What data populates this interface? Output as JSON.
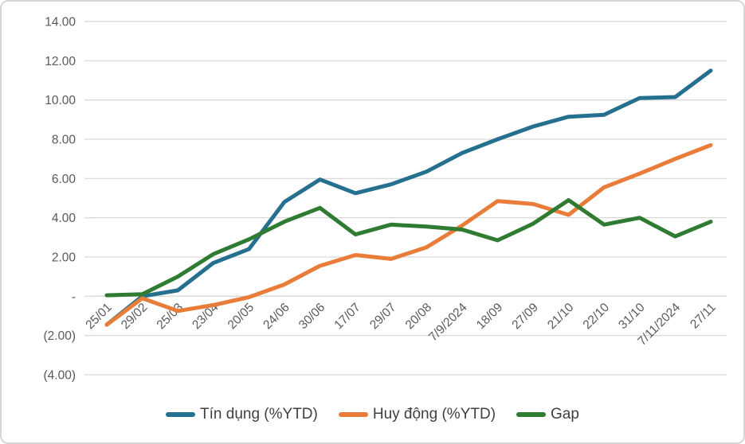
{
  "chart_data": {
    "type": "line",
    "title": "",
    "xlabel": "",
    "ylabel": "",
    "categories": [
      "25/01",
      "29/02",
      "25/03",
      "23/04",
      "20/05",
      "24/06",
      "30/06",
      "17/07",
      "29/07",
      "20/08",
      "7/9/2024",
      "18/09",
      "27/09",
      "21/10",
      "22/10",
      "31/10",
      "7/11/2024",
      "27/11"
    ],
    "series": [
      {
        "name": "Tín dụng (%YTD)",
        "color": "#26708F",
        "values": [
          -1.45,
          0.0,
          0.3,
          1.7,
          2.4,
          4.8,
          5.95,
          5.25,
          5.7,
          6.35,
          7.3,
          8.0,
          8.65,
          9.15,
          9.25,
          10.1,
          10.15,
          11.5
        ]
      },
      {
        "name": "Huy động (%YTD)",
        "color": "#E97C38",
        "values": [
          -1.45,
          -0.1,
          -0.75,
          -0.45,
          -0.05,
          0.6,
          1.55,
          2.1,
          1.9,
          2.5,
          3.6,
          4.85,
          4.7,
          4.15,
          5.55,
          6.25,
          7.0,
          7.7
        ]
      },
      {
        "name": "Gap",
        "color": "#2E7B31",
        "values": [
          0.05,
          0.1,
          1.0,
          2.15,
          2.9,
          3.8,
          4.5,
          3.15,
          3.65,
          3.55,
          3.4,
          2.85,
          3.7,
          4.9,
          3.65,
          4.0,
          3.05,
          3.8
        ]
      }
    ],
    "ylim": [
      -4,
      14
    ],
    "yticks": [
      -4,
      -2,
      0,
      2,
      4,
      6,
      8,
      10,
      12,
      14
    ],
    "ytick_labels": [
      "(4.00)",
      "(2.00)",
      "-",
      "2.00",
      "4.00",
      "6.00",
      "8.00",
      "10.00",
      "12.00",
      "14.00"
    ],
    "grid": true,
    "legend_position": "bottom"
  },
  "colors": {
    "background": "#FFFFFF",
    "border": "#D6D6D6",
    "gridline": "#D9D9D9",
    "axis_text": "#595959",
    "legend_text": "#3F3F3F"
  }
}
